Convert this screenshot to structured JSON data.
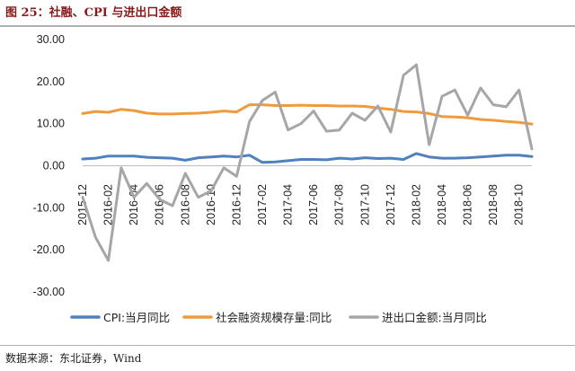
{
  "figure_title": "图 25：社融、CPI 与进出口金额",
  "source_note": "数据来源：东北证券，Wind",
  "chart_data": {
    "type": "line",
    "title": "",
    "xlabel": "",
    "ylabel": "",
    "ylim": [
      -30,
      30
    ],
    "yticks": [
      "30.00",
      "20.00",
      "10.00",
      "0.00",
      "-10.00",
      "-20.00",
      "-30.00"
    ],
    "ytick_values": [
      30,
      20,
      10,
      0,
      -10,
      -20,
      -30
    ],
    "grid": false,
    "legend_position": "bottom",
    "x": [
      "2015-12",
      "2016-01",
      "2016-02",
      "2016-03",
      "2016-04",
      "2016-05",
      "2016-06",
      "2016-07",
      "2016-08",
      "2016-09",
      "2016-10",
      "2016-11",
      "2016-12",
      "2017-01",
      "2017-02",
      "2017-03",
      "2017-04",
      "2017-05",
      "2017-06",
      "2017-07",
      "2017-08",
      "2017-09",
      "2017-10",
      "2017-11",
      "2017-12",
      "2018-01",
      "2018-02",
      "2018-03",
      "2018-04",
      "2018-05",
      "2018-06",
      "2018-07",
      "2018-08",
      "2018-09",
      "2018-10",
      "2018-11"
    ],
    "xtick_labels": [
      "2015-12",
      "2016-02",
      "2016-04",
      "2016-06",
      "2016-08",
      "2016-10",
      "2016-12",
      "2017-02",
      "2017-04",
      "2017-06",
      "2017-08",
      "2017-10",
      "2017-12",
      "2018-02",
      "2018-04",
      "2018-06",
      "2018-08",
      "2018-10"
    ],
    "series": [
      {
        "name": "CPI:当月同比",
        "color": "#4e81bd",
        "values": [
          1.6,
          1.8,
          2.3,
          2.3,
          2.3,
          2.0,
          1.9,
          1.8,
          1.3,
          1.9,
          2.1,
          2.3,
          2.1,
          2.5,
          0.8,
          0.9,
          1.2,
          1.5,
          1.5,
          1.4,
          1.8,
          1.6,
          1.9,
          1.7,
          1.8,
          1.5,
          2.9,
          2.1,
          1.8,
          1.8,
          1.9,
          2.1,
          2.3,
          2.5,
          2.5,
          2.2
        ]
      },
      {
        "name": "社会融资规模存量:同比",
        "color": "#f09a3e",
        "values": [
          12.4,
          12.9,
          12.7,
          13.4,
          13.1,
          12.5,
          12.3,
          12.3,
          12.4,
          12.5,
          12.7,
          13.0,
          12.8,
          14.5,
          14.5,
          14.3,
          14.3,
          14.4,
          14.3,
          14.3,
          14.2,
          14.2,
          14.1,
          13.7,
          13.4,
          12.9,
          12.8,
          12.4,
          11.7,
          11.6,
          11.4,
          11.0,
          10.8,
          10.5,
          10.3,
          9.9
        ]
      },
      {
        "name": "进出口金额:当月同比",
        "color": "#a6a6a6",
        "values": [
          -7.5,
          -17.0,
          -22.5,
          -0.5,
          -7.5,
          -4.2,
          -8.0,
          -9.5,
          -1.8,
          -7.5,
          -6.0,
          -0.5,
          -2.5,
          10.5,
          15.5,
          17.5,
          8.5,
          10.0,
          13.0,
          8.2,
          8.5,
          12.5,
          10.8,
          14.2,
          8.0,
          21.5,
          24.0,
          5.0,
          16.5,
          18.0,
          12.0,
          18.5,
          14.5,
          14.0,
          18.0,
          4.0
        ]
      }
    ]
  }
}
